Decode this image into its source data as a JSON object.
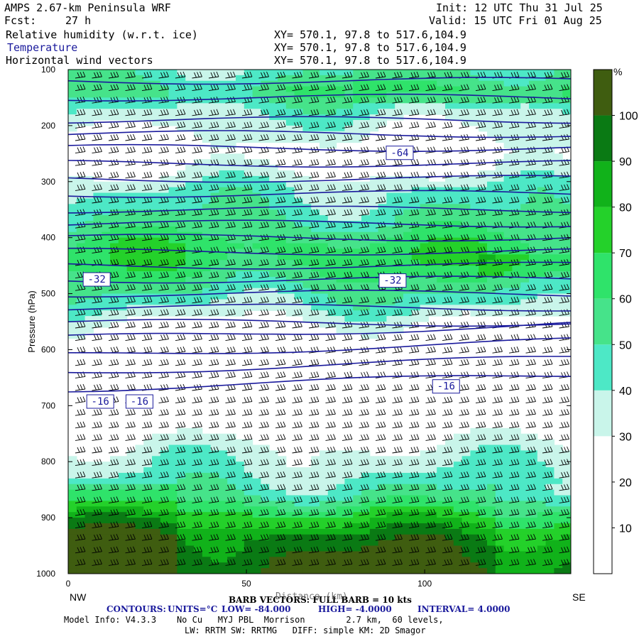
{
  "header": {
    "model": "AMPS 2.67-km Peninsula WRF",
    "fcst_label": "Fcst:",
    "fcst_value": "27 h",
    "init": "Init: 12 UTC Thu 31 Jul 25",
    "valid": "Valid: 15 UTC Fri 01 Aug 25",
    "fields": [
      {
        "name": "Relative humidity (w.r.t. ice)",
        "xy": "XY= 570.1, 97.8 to 517.6,104.9",
        "color": "#000000"
      },
      {
        "name": "Temperature",
        "xy": "XY= 570.1, 97.8 to 517.6,104.9",
        "color": "#1a1a9c"
      },
      {
        "name": "Horizontal wind vectors",
        "xy": "XY= 570.1, 97.8 to 517.6,104.9",
        "color": "#000000"
      }
    ]
  },
  "footer": {
    "barb_note": "BARB VECTORS: FULL BARB = 10 kts",
    "distance_label": "Distance (km)",
    "contours_label": "CONTOURS:",
    "units": "UNITS=°C",
    "low": "LOW= -84.000",
    "high": "HIGH= -4.0000",
    "interval": "INTERVAL= 4.0000",
    "model_info_1": "Model Info: V4.3.3    No Cu   MYJ PBL  Morrison        2.7 km,  60 levels,",
    "model_info_2": "LW: RRTM SW: RRTMG   DIFF: simple KM: 2D Smagor"
  },
  "chart_data": {
    "type": "heatmap",
    "ylabel": "Pressure (hPa)",
    "xlabel": "Distance (km)",
    "x_range": [
      0,
      141
    ],
    "y_range": [
      1000,
      100
    ],
    "y_ticks": [
      100,
      200,
      300,
      400,
      500,
      600,
      700,
      800,
      900,
      1000
    ],
    "x_ticks": [
      0,
      50,
      100
    ],
    "x_end_labels": {
      "left": "NW",
      "right": "SE"
    },
    "colorbar": {
      "unit": "%",
      "ticks": [
        10,
        20,
        30,
        40,
        50,
        60,
        70,
        80,
        90,
        100
      ],
      "bins": [
        0,
        10,
        20,
        30,
        40,
        50,
        60,
        70,
        80,
        90,
        100,
        110
      ],
      "colors": [
        "#ffffff",
        "#ffffff",
        "#ffffff",
        "#c9f5ea",
        "#4de8c6",
        "#46e38a",
        "#2fe36a",
        "#24d12a",
        "#11b21a",
        "#0a7a14",
        "#3f5d10"
      ]
    },
    "rh_profile": [
      {
        "p": 100,
        "rh": 44
      },
      {
        "p": 140,
        "rh": 55
      },
      {
        "p": 175,
        "rh": 40
      },
      {
        "p": 205,
        "rh": 32
      },
      {
        "p": 250,
        "rh": 22
      },
      {
        "p": 280,
        "rh": 28
      },
      {
        "p": 310,
        "rh": 40
      },
      {
        "p": 340,
        "rh": 45
      },
      {
        "p": 375,
        "rh": 52
      },
      {
        "p": 410,
        "rh": 64
      },
      {
        "p": 440,
        "rh": 66
      },
      {
        "p": 470,
        "rh": 58
      },
      {
        "p": 500,
        "rh": 48
      },
      {
        "p": 530,
        "rh": 38
      },
      {
        "p": 560,
        "rh": 25
      },
      {
        "p": 600,
        "rh": 15
      },
      {
        "p": 650,
        "rh": 12
      },
      {
        "p": 700,
        "rh": 14
      },
      {
        "p": 740,
        "rh": 22
      },
      {
        "p": 780,
        "rh": 33
      },
      {
        "p": 820,
        "rh": 40
      },
      {
        "p": 860,
        "rh": 50
      },
      {
        "p": 900,
        "rh": 75
      },
      {
        "p": 940,
        "rh": 95
      },
      {
        "p": 1000,
        "rh": 105
      }
    ],
    "temperature_contours": {
      "units": "°C",
      "low": -84,
      "high": -4,
      "interval": 4,
      "labeled": [
        {
          "value": "-64",
          "x_km": 93,
          "p": 248
        },
        {
          "value": "-32",
          "x_km": 8,
          "p": 474
        },
        {
          "value": "-32",
          "x_km": 91,
          "p": 476
        },
        {
          "value": "-16",
          "x_km": 9,
          "p": 692
        },
        {
          "value": "-16",
          "x_km": 20,
          "p": 692
        },
        {
          "value": "-16",
          "x_km": 106,
          "p": 665
        }
      ]
    },
    "wind_barbs": {
      "full_barb_kts": 10
    }
  }
}
